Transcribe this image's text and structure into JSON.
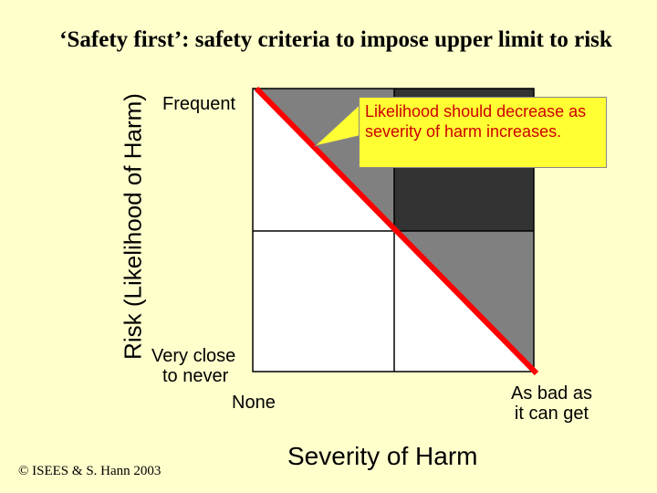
{
  "title": "‘Safety first’: safety criteria to impose upper limit to risk",
  "y_axis_label": "Risk (Likelihood of Harm)",
  "x_axis_label": "Severity of Harm",
  "labels": {
    "frequent": "Frequent",
    "very_close_line1": "Very close",
    "very_close_line2": "to never",
    "none": "None",
    "bad_line1": "As bad as",
    "bad_line2": "it can get"
  },
  "callout": {
    "line1": "Likelihood should decrease as",
    "line2": "severity of harm increases."
  },
  "copyright": "© ISEES & S. Hann 2003",
  "colors": {
    "background": "#ffffcc",
    "shaded_region": "#808080",
    "dark_region": "#333333",
    "risk_line": "#ff0000",
    "callout_fill": "#ffff33",
    "callout_text": "#cc0000"
  }
}
